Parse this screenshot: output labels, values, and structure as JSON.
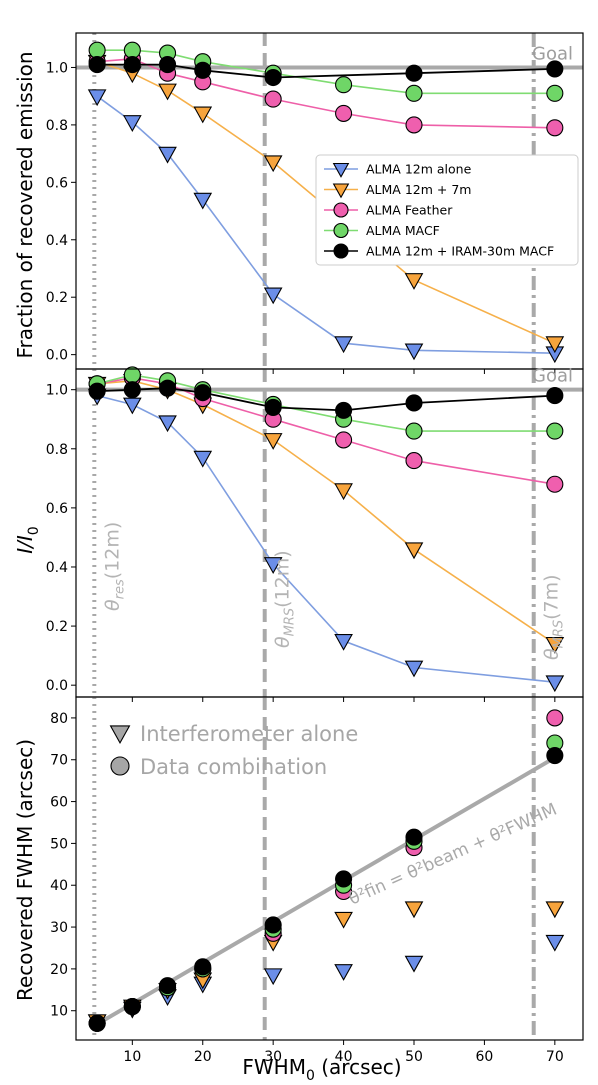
{
  "chart_data": {
    "type": "line",
    "x": [
      5,
      10,
      15,
      20,
      30,
      40,
      50,
      70
    ],
    "xlim": [
      2,
      74
    ],
    "xticks": [
      "10",
      "20",
      "30",
      "40",
      "50",
      "60",
      "70"
    ],
    "xlabel_main": "FWHM",
    "xlabel_sub": "0",
    "xlabel_unit": " (arcsec)",
    "markers_vertical": [
      {
        "x": 4.6,
        "style": "dotted",
        "label_main": "θ",
        "label_sub": "res",
        "label_rest": "(12m)"
      },
      {
        "x": 28.8,
        "style": "dashed",
        "label_main": "θ",
        "label_sub": "MRS",
        "label_rest": "(12m)"
      },
      {
        "x": 67,
        "style": "dashdot",
        "label_main": "θ",
        "label_sub": "MRS",
        "label_rest": "(7m)"
      }
    ],
    "series_styles": [
      {
        "key": "alone",
        "name": "ALMA 12m alone",
        "marker": "triangle-down",
        "line": "#7f9ee0",
        "fill": "#6b8ee8"
      },
      {
        "key": "plus7",
        "name": "ALMA 12m + 7m",
        "marker": "triangle-down",
        "line": "#f6b04a",
        "fill": "#f7a43c"
      },
      {
        "key": "feather",
        "name": "ALMA Feather",
        "marker": "circle",
        "line": "#ee5fa8",
        "fill": "#ef5fae"
      },
      {
        "key": "macf",
        "name": "ALMA MACF",
        "marker": "circle",
        "line": "#7fdc72",
        "fill": "#6fd667"
      },
      {
        "key": "iram",
        "name": "ALMA 12m + IRAM-30m MACF",
        "marker": "circle",
        "line": "#000000",
        "fill": "#000000"
      }
    ],
    "panels": [
      {
        "ylabel": "Fraction of recovered emission",
        "ylim": [
          -0.05,
          1.12
        ],
        "yticks": [
          "0.0",
          "0.2",
          "0.4",
          "0.6",
          "0.8",
          "1.0"
        ],
        "goal": {
          "y": 1.0,
          "label": "Goal"
        },
        "legend": "right-middle",
        "series": {
          "alone": [
            0.9,
            0.81,
            0.7,
            0.54,
            0.21,
            0.04,
            0.015,
            0.005
          ],
          "plus7": [
            1.02,
            0.98,
            0.92,
            0.84,
            0.67,
            null,
            0.26,
            0.04
          ],
          "feather": [
            1.02,
            1.03,
            0.98,
            0.95,
            0.89,
            0.84,
            0.8,
            0.79
          ],
          "macf": [
            1.06,
            1.06,
            1.05,
            1.02,
            0.98,
            0.94,
            0.91,
            0.91
          ],
          "iram": [
            1.01,
            1.01,
            1.01,
            0.99,
            0.965,
            null,
            0.98,
            0.995
          ]
        }
      },
      {
        "ylabel_main": "I/I",
        "ylabel_sub": "0",
        "ylim": [
          -0.04,
          1.07
        ],
        "yticks": [
          "0.0",
          "0.2",
          "0.4",
          "0.6",
          "0.8",
          "1.0"
        ],
        "goal": {
          "y": 1.0,
          "label": "Goal"
        },
        "series": {
          "alone": [
            0.98,
            0.95,
            0.89,
            0.77,
            0.41,
            0.15,
            0.06,
            0.01
          ],
          "plus7": [
            1.02,
            1.03,
            1.0,
            0.95,
            0.83,
            0.66,
            0.46,
            0.14
          ],
          "feather": [
            1.02,
            1.04,
            1.02,
            0.97,
            0.9,
            0.83,
            0.76,
            0.68
          ],
          "macf": [
            1.02,
            1.05,
            1.03,
            1.0,
            0.95,
            0.9,
            0.86,
            0.86
          ],
          "iram": [
            0.995,
            1.0,
            1.005,
            0.99,
            0.94,
            0.93,
            0.955,
            0.98
          ]
        }
      },
      {
        "ylabel": "Recovered FWHM (arcsec)",
        "ylim": [
          3,
          85
        ],
        "yticks": [
          "10",
          "20",
          "30",
          "40",
          "50",
          "60",
          "70",
          "80"
        ],
        "legend_items": [
          {
            "marker": "triangle-down",
            "label": "Interferometer alone"
          },
          {
            "marker": "circle",
            "label": "Data combination"
          }
        ],
        "fit_line": {
          "x": [
            5,
            70
          ],
          "y": [
            6.8,
            70.5
          ]
        },
        "fit_label": "θ²fin = θ²beam + θ²FWHM",
        "series": {
          "alone": [
            7.5,
            10.5,
            13.5,
            16.5,
            18.5,
            19.5,
            21.5,
            26.5
          ],
          "plus7": [
            7.5,
            11,
            15,
            17.5,
            26.5,
            32,
            34.5,
            34.5
          ],
          "feather": [
            7,
            11,
            15.5,
            20,
            28.5,
            38.5,
            49,
            80
          ],
          "macf": [
            7,
            11,
            15.5,
            20,
            29.5,
            40,
            50.5,
            74
          ],
          "iram": [
            7,
            11,
            16,
            20.5,
            30.5,
            41.5,
            51.5,
            71
          ]
        }
      }
    ]
  }
}
